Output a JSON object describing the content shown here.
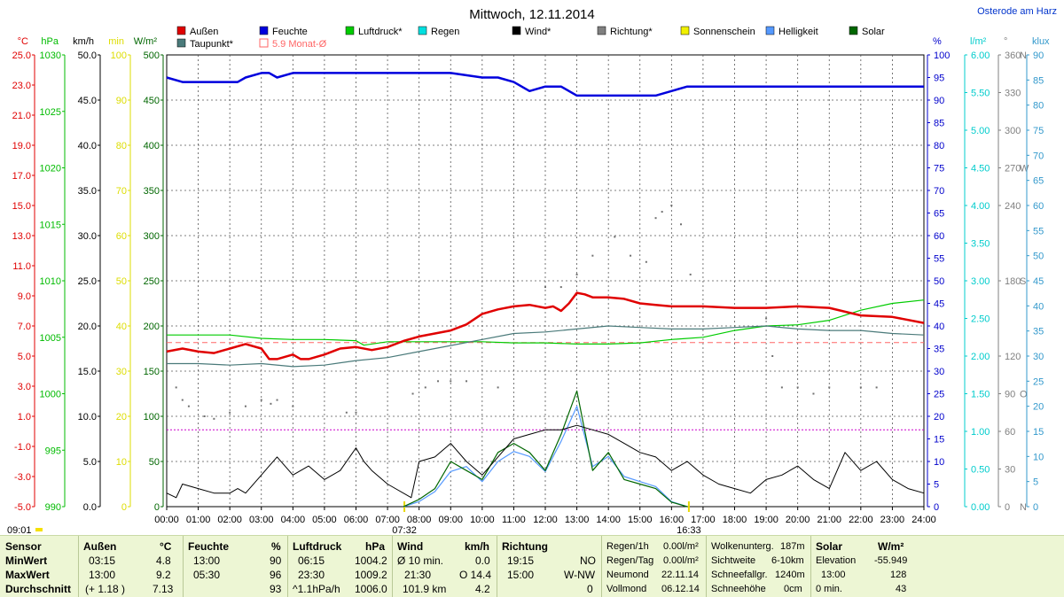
{
  "title": "Mittwoch, 12.11.2014",
  "location": "Osterode am Harz",
  "time_label": "09:01",
  "sunrise": "07:32",
  "sunset": "16:33",
  "legend": [
    {
      "label": "Außen",
      "color": "#e00000"
    },
    {
      "label": "Feuchte",
      "color": "#0000dd"
    },
    {
      "label": "Luftdruck*",
      "color": "#00cc00"
    },
    {
      "label": "Regen",
      "color": "#00e0e0"
    },
    {
      "label": "Wind*",
      "color": "#000000"
    },
    {
      "label": "Richtung*",
      "color": "#808080"
    },
    {
      "label": "Sonnenschein",
      "color": "#f0f000"
    },
    {
      "label": "Helligkeit",
      "color": "#5599ff"
    },
    {
      "label": "Solar",
      "color": "#006600"
    },
    {
      "label": "Taupunkt*",
      "color": "#4a7a7a"
    },
    {
      "label": "5.9 Monat-Ø",
      "color": "#ff6666"
    }
  ],
  "axes": {
    "temp": {
      "unit": "°C",
      "ticks": [
        "25.0",
        "23.0",
        "21.0",
        "19.0",
        "17.0",
        "15.0",
        "13.0",
        "11.0",
        "9.0",
        "7.0",
        "5.0",
        "3.0",
        "1.0",
        "-1.0",
        "-3.0",
        "-5.0"
      ],
      "color": "#e00000"
    },
    "pressure": {
      "unit": "hPa",
      "ticks": [
        "1030",
        "1025",
        "1020",
        "1015",
        "1010",
        "1005",
        "1000",
        "995",
        "990"
      ],
      "color": "#00bb00"
    },
    "wind": {
      "unit": "km/h",
      "ticks": [
        "50.0",
        "45.0",
        "40.0",
        "35.0",
        "30.0",
        "25.0",
        "20.0",
        "15.0",
        "10.0",
        "5.0",
        "0.0"
      ],
      "color": "#000000"
    },
    "sunmin": {
      "unit": "min",
      "ticks": [
        "100",
        "90",
        "80",
        "70",
        "60",
        "50",
        "40",
        "30",
        "20",
        "10",
        "0"
      ],
      "color": "#dddd00"
    },
    "solar": {
      "unit": "W/m²",
      "ticks": [
        "500",
        "450",
        "400",
        "350",
        "300",
        "250",
        "200",
        "150",
        "100",
        "50",
        "0"
      ],
      "color": "#006600"
    },
    "humidity": {
      "unit": "%",
      "ticks": [
        "100",
        "95",
        "90",
        "85",
        "80",
        "75",
        "70",
        "65",
        "60",
        "55",
        "50",
        "45",
        "40",
        "35",
        "30",
        "25",
        "20",
        "15",
        "10",
        "5",
        "0"
      ],
      "color": "#0000cc"
    },
    "rain": {
      "unit": "l/m²",
      "ticks": [
        "6.00",
        "5.50",
        "5.00",
        "4.50",
        "4.00",
        "3.50",
        "3.00",
        "2.50",
        "2.00",
        "1.50",
        "1.00",
        "0.50",
        "0.00"
      ],
      "color": "#00cccc"
    },
    "direction": {
      "unit": "°",
      "ticks": [
        "360",
        "330",
        "300",
        "270",
        "240",
        "180",
        "120",
        "90",
        "60",
        "30",
        "0"
      ],
      "letters": [
        "N",
        "W",
        "S",
        "O",
        "N"
      ],
      "color": "#808080"
    },
    "lux": {
      "unit": "klux",
      "ticks": [
        "90",
        "85",
        "80",
        "75",
        "70",
        "65",
        "60",
        "55",
        "50",
        "45",
        "40",
        "35",
        "30",
        "25",
        "20",
        "15",
        "10",
        "5",
        "0"
      ],
      "color": "#3399cc"
    },
    "x_ticks": [
      "00:00",
      "01:00",
      "02:00",
      "03:00",
      "04:00",
      "05:00",
      "06:00",
      "07:00",
      "08:00",
      "09:00",
      "10:00",
      "11:00",
      "12:00",
      "13:00",
      "14:00",
      "15:00",
      "16:00",
      "17:00",
      "18:00",
      "19:00",
      "20:00",
      "21:00",
      "22:00",
      "23:00",
      "24:00"
    ]
  },
  "chart_data": {
    "type": "line",
    "x_unit": "hours",
    "series": [
      {
        "name": "Außen",
        "unit": "°C",
        "color": "#e00000",
        "x": [
          0,
          0.5,
          1,
          1.5,
          2,
          2.5,
          3,
          3.25,
          3.5,
          4,
          4.25,
          4.5,
          5,
          5.5,
          6,
          6.5,
          7,
          7.5,
          8,
          8.5,
          9,
          9.5,
          10,
          10.5,
          11,
          11.5,
          12,
          12.25,
          12.5,
          12.75,
          13,
          13.25,
          13.5,
          14,
          14.5,
          15,
          15.5,
          16,
          17,
          18,
          19,
          20,
          21,
          22,
          23,
          24
        ],
        "values": [
          5.3,
          5.5,
          5.3,
          5.2,
          5.5,
          5.8,
          5.5,
          4.8,
          4.8,
          5.1,
          4.8,
          4.8,
          5.1,
          5.5,
          5.6,
          5.4,
          5.6,
          6.0,
          6.3,
          6.5,
          6.7,
          7.1,
          7.8,
          8.1,
          8.3,
          8.4,
          8.2,
          8.3,
          8.0,
          8.5,
          9.2,
          9.1,
          8.9,
          8.9,
          8.8,
          8.5,
          8.4,
          8.3,
          8.3,
          8.2,
          8.2,
          8.3,
          8.2,
          7.7,
          7.6,
          7.2
        ]
      },
      {
        "name": "Taupunkt*",
        "unit": "°C",
        "color": "#4a7a7a",
        "x": [
          0,
          1,
          2,
          3,
          4,
          5,
          6,
          7,
          8,
          9,
          10,
          11,
          12,
          13,
          14,
          15,
          16,
          17,
          18,
          19,
          20,
          21,
          22,
          23,
          24
        ],
        "values": [
          4.5,
          4.5,
          4.4,
          4.5,
          4.3,
          4.4,
          4.7,
          4.9,
          5.3,
          5.7,
          6.1,
          6.5,
          6.6,
          6.8,
          7.0,
          6.9,
          6.8,
          6.8,
          6.9,
          7.0,
          6.8,
          6.7,
          6.7,
          6.5,
          6.4
        ]
      },
      {
        "name": "Feuchte",
        "unit": "%",
        "color": "#0000dd",
        "x": [
          0,
          0.5,
          1,
          2,
          2.25,
          2.5,
          3,
          3.25,
          3.5,
          4,
          5,
          5.5,
          6,
          7,
          8,
          9,
          10,
          10.5,
          11,
          11.5,
          12,
          12.5,
          13,
          13.5,
          14,
          14.5,
          15,
          15.5,
          16,
          16.5,
          17,
          18,
          19,
          19.5,
          20,
          21,
          22,
          23,
          24
        ],
        "values": [
          95,
          94,
          94,
          94,
          94,
          95,
          96,
          96,
          95,
          96,
          96,
          96,
          96,
          96,
          96,
          96,
          95,
          95,
          94,
          92,
          93,
          93,
          91,
          91,
          91,
          91,
          91,
          91,
          92,
          93,
          93,
          93,
          93,
          93,
          93,
          93,
          93,
          93,
          93
        ]
      },
      {
        "name": "Luftdruck*",
        "unit": "hPa",
        "color": "#00cc00",
        "x": [
          0,
          1,
          2,
          3,
          4,
          5,
          6,
          6.25,
          7,
          8,
          9,
          10,
          11,
          12,
          13,
          14,
          15,
          16,
          17,
          18,
          19,
          20,
          21,
          22,
          23,
          24
        ],
        "values": [
          1005.2,
          1005.2,
          1005.2,
          1004.9,
          1004.8,
          1004.8,
          1004.7,
          1004.3,
          1004.6,
          1004.6,
          1004.6,
          1004.6,
          1004.5,
          1004.5,
          1004.4,
          1004.4,
          1004.5,
          1004.8,
          1005.0,
          1005.6,
          1006.0,
          1006.1,
          1006.5,
          1007.4,
          1008.0,
          1008.3
        ]
      },
      {
        "name": "Wind*",
        "unit": "km/h",
        "color": "#000000",
        "x": [
          0,
          0.3,
          0.5,
          1,
          1.5,
          2,
          2.25,
          2.5,
          3,
          3.25,
          3.5,
          4,
          4.5,
          5,
          5.5,
          6,
          6.25,
          6.5,
          7,
          7.75,
          8,
          8.5,
          9,
          9.5,
          10,
          10.5,
          11,
          11.5,
          12,
          12.5,
          13,
          13.5,
          14,
          14.5,
          15,
          15.5,
          16,
          16.5,
          17,
          17.5,
          18,
          18.5,
          19,
          19.5,
          20,
          20.5,
          21,
          21.5,
          22,
          22.5,
          23,
          23.5,
          24
        ],
        "values": [
          1.5,
          1.0,
          2.5,
          2.0,
          1.5,
          1.5,
          2.0,
          1.5,
          3.5,
          4.5,
          5.5,
          3.5,
          4.5,
          3.0,
          4.0,
          6.5,
          5.0,
          4.0,
          2.5,
          1.0,
          5.0,
          5.5,
          7.0,
          5.0,
          3.5,
          5.5,
          7.5,
          8.0,
          8.5,
          8.5,
          9.0,
          8.5,
          8.0,
          7.0,
          6.0,
          5.5,
          4.0,
          5.0,
          3.5,
          2.5,
          2.0,
          1.5,
          3.0,
          3.5,
          4.5,
          3.0,
          2.0,
          6.0,
          4.0,
          5.0,
          3.0,
          2.0,
          1.5
        ]
      },
      {
        "name": "Solar",
        "unit": "W/m²",
        "color": "#006600",
        "x": [
          7.5,
          8,
          8.5,
          9,
          9.5,
          10,
          10.5,
          11,
          11.5,
          12,
          12.5,
          13,
          13.5,
          14,
          14.5,
          15,
          15.5,
          16,
          16.5
        ],
        "values": [
          0,
          8,
          20,
          50,
          40,
          30,
          60,
          70,
          60,
          40,
          80,
          128,
          40,
          60,
          30,
          25,
          20,
          5,
          0
        ]
      },
      {
        "name": "Helligkeit",
        "unit": "klux",
        "color": "#5599ff",
        "x": [
          7.5,
          8,
          8.5,
          9,
          9.5,
          10,
          10.5,
          11,
          11.5,
          12,
          12.5,
          13,
          13.5,
          14,
          14.5,
          15,
          15.5,
          16,
          16.5
        ],
        "values": [
          0,
          1,
          3,
          7,
          8,
          5,
          9,
          11,
          10,
          7,
          13,
          20,
          8,
          10,
          6,
          5,
          4,
          1,
          0
        ]
      },
      {
        "name": "5.9 Monat-Ø",
        "unit": "°C",
        "color": "#ff6666",
        "x": [
          0,
          24
        ],
        "values": [
          5.9,
          5.9
        ]
      }
    ],
    "direction_points": {
      "unit": "°",
      "x": [
        0.3,
        0.5,
        0.7,
        1.2,
        1.5,
        2,
        2.5,
        3.0,
        3.3,
        3.5,
        4,
        5.7,
        6,
        7.8,
        8.2,
        8.6,
        9,
        9.5,
        10.5,
        12,
        12.5,
        13,
        13.5,
        14.2,
        14.7,
        15.2,
        15.5,
        15.7,
        16,
        16.3,
        16.6,
        19,
        19.2,
        19.5,
        20,
        20.5,
        21,
        22,
        22.5
      ],
      "values": [
        95,
        85,
        80,
        72,
        70,
        75,
        80,
        85,
        82,
        85,
        80,
        75,
        75,
        90,
        95,
        100,
        100,
        100,
        95,
        175,
        175,
        185,
        200,
        215,
        200,
        195,
        230,
        235,
        240,
        225,
        185,
        150,
        120,
        95,
        95,
        90,
        95,
        95,
        95
      ]
    },
    "sunshine_minutes_line": {
      "unit": "min",
      "value": 17
    },
    "ylim_temp": [
      -5,
      25
    ],
    "ylim_humidity": [
      0,
      100
    ],
    "ylim_pressure": [
      990,
      1030
    ],
    "ylim_wind": [
      0,
      50
    ],
    "ylim_solar": [
      0,
      500
    ],
    "ylim_lux": [
      0,
      90
    ]
  },
  "table": {
    "col1": {
      "header": "Sensor",
      "rows": [
        "MinWert",
        "MaxWert",
        "Durchschnitt"
      ]
    },
    "col2": {
      "header": "Außen",
      "unit": "°C",
      "rows": [
        [
          "03:15",
          "4.8"
        ],
        [
          "13:00",
          "9.2"
        ],
        [
          "(+ 1.18 )",
          "7.13"
        ]
      ]
    },
    "col3": {
      "header": "Feuchte",
      "unit": "%",
      "rows": [
        [
          "13:00",
          "90"
        ],
        [
          "05:30",
          "96"
        ],
        [
          "",
          "93"
        ]
      ]
    },
    "col4": {
      "header": "Luftdruck",
      "unit": "hPa",
      "rows": [
        [
          "06:15",
          "1004.2"
        ],
        [
          "23:30",
          "1009.2"
        ],
        [
          "^1.1hPa/h",
          "1006.0"
        ]
      ]
    },
    "col5": {
      "header": "Wind",
      "unit": "km/h",
      "rows": [
        [
          "Ø 10 min.",
          "0.0"
        ],
        [
          "21:30",
          "O 14.4"
        ],
        [
          "101.9 km",
          "4.2"
        ]
      ]
    },
    "col6": {
      "header": "Richtung",
      "rows": [
        [
          "19:15",
          "NO"
        ],
        [
          "15:00",
          "W-NW"
        ],
        [
          "",
          "0"
        ]
      ]
    },
    "col7": {
      "rows": [
        [
          "Regen/1h",
          "0.00l/m²"
        ],
        [
          "Regen/Tag",
          "0.00l/m²"
        ],
        [
          "Neumond",
          "22.11.14"
        ],
        [
          "Vollmond",
          "06.12.14"
        ]
      ]
    },
    "col8": {
      "rows": [
        [
          "Wolkenunterg.",
          "187m"
        ],
        [
          "Sichtweite",
          "6-10km"
        ],
        [
          "Schneefallgr.",
          "1240m"
        ],
        [
          "Schneehöhe",
          "0cm"
        ]
      ]
    },
    "col9": {
      "header": "Solar",
      "unit": "W/m²",
      "rows": [
        [
          "Elevation",
          "-55.949"
        ],
        [
          "13:00",
          "128"
        ],
        [
          "0 min.",
          "43"
        ]
      ]
    }
  }
}
